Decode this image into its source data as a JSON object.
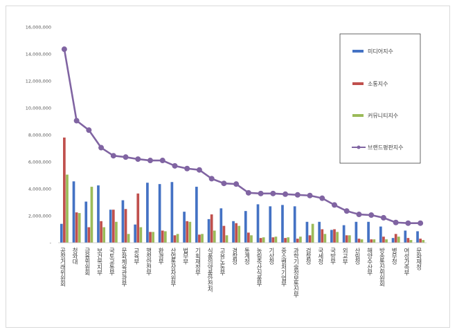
{
  "chart_data": {
    "type": "bar",
    "title": "",
    "xlabel": "",
    "ylabel": "",
    "ylim": [
      0,
      16000000
    ],
    "yticks": [
      0,
      2000000,
      4000000,
      6000000,
      8000000,
      10000000,
      12000000,
      14000000,
      16000000
    ],
    "ytick_labels": [
      "-",
      "2,000,000",
      "4,000,000",
      "6,000,000",
      "8,000,000",
      "10,000,000",
      "12,000,000",
      "14,000,000",
      "16,000,000"
    ],
    "legend_position": "right",
    "categories": [
      "공정거래위원회",
      "청와대",
      "금융위원회",
      "보건복지부",
      "국토교통부",
      "문화체육관광부",
      "교육부",
      "행정안전부",
      "환경부",
      "산업통상자원부",
      "법무부",
      "기획재정부",
      "식품의약품안전처",
      "고용노동부",
      "경찰청",
      "통계청",
      "농림축산식품부",
      "기상청",
      "중소벤처기업부",
      "과학기술정보통신부",
      "검찰청",
      "국세청",
      "국방부",
      "외교부",
      "산림청",
      "해양수산부",
      "방송통신위원회",
      "병무청",
      "여성가족부",
      "문화재청"
    ],
    "series": [
      {
        "name": "미디어지수",
        "type": "bar",
        "color": "#4472c4",
        "values": [
          1400000,
          4550000,
          3050000,
          4250000,
          2450000,
          3150000,
          1350000,
          4450000,
          4350000,
          4500000,
          2300000,
          4150000,
          1750000,
          2550000,
          1600000,
          2350000,
          2850000,
          2700000,
          2800000,
          2700000,
          1550000,
          1550000,
          950000,
          1300000,
          1550000,
          1550000,
          1200000,
          350000,
          900000,
          850000
        ]
      },
      {
        "name": "소통지수",
        "type": "bar",
        "color": "#c0504d",
        "values": [
          7800000,
          2250000,
          1150000,
          1600000,
          2450000,
          2500000,
          3650000,
          800000,
          900000,
          550000,
          1600000,
          600000,
          2100000,
          1250000,
          1450000,
          750000,
          350000,
          400000,
          350000,
          300000,
          550000,
          1000000,
          1000000,
          550000,
          300000,
          250000,
          450000,
          650000,
          350000,
          300000
        ]
      },
      {
        "name": "커뮤니티지수",
        "type": "bar",
        "color": "#9bbb59",
        "values": [
          5050000,
          2200000,
          4150000,
          1150000,
          1550000,
          650000,
          1150000,
          800000,
          850000,
          650000,
          1550000,
          650000,
          900000,
          550000,
          1250000,
          550000,
          400000,
          450000,
          400000,
          450000,
          1400000,
          650000,
          800000,
          550000,
          250000,
          250000,
          250000,
          450000,
          200000,
          200000
        ]
      },
      {
        "name": "브랜드평판지수",
        "type": "line",
        "color": "#8064a2",
        "values": [
          14350000,
          9050000,
          8350000,
          7050000,
          6450000,
          6350000,
          6200000,
          6100000,
          6100000,
          5700000,
          5500000,
          5400000,
          4750000,
          4400000,
          4350000,
          3700000,
          3650000,
          3650000,
          3600000,
          3550000,
          3500000,
          3300000,
          2800000,
          2350000,
          2100000,
          2050000,
          1850000,
          1500000,
          1450000,
          1450000
        ]
      }
    ]
  }
}
